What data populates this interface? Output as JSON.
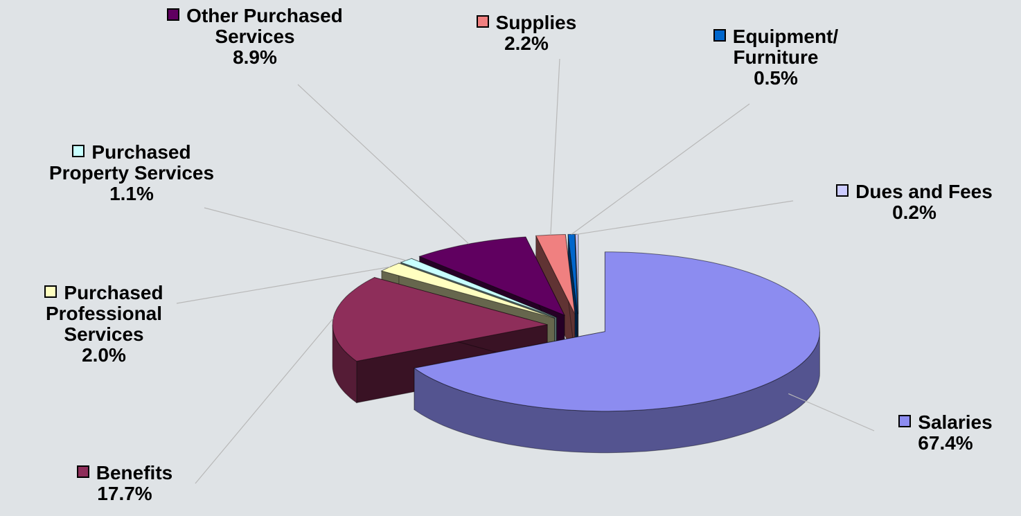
{
  "chart_data": {
    "type": "pie3d",
    "categories": [
      "Salaries",
      "Benefits",
      "Purchased Professional Services",
      "Purchased Property Services",
      "Other Purchased Services",
      "Supplies",
      "Equipment/ Furniture",
      "Dues and Fees"
    ],
    "values": [
      67.4,
      17.7,
      2.0,
      1.1,
      8.9,
      2.2,
      0.5,
      0.2
    ],
    "value_labels": [
      "67.4%",
      "17.7%",
      "2.0%",
      "1.1%",
      "8.9%",
      "2.2%",
      "0.5%",
      "0.2%"
    ],
    "colors": [
      "#8c8cf0",
      "#8e2e5a",
      "#ffffc0",
      "#c8ffff",
      "#600060",
      "#f08080",
      "#0066cc",
      "#ccccff"
    ]
  }
}
